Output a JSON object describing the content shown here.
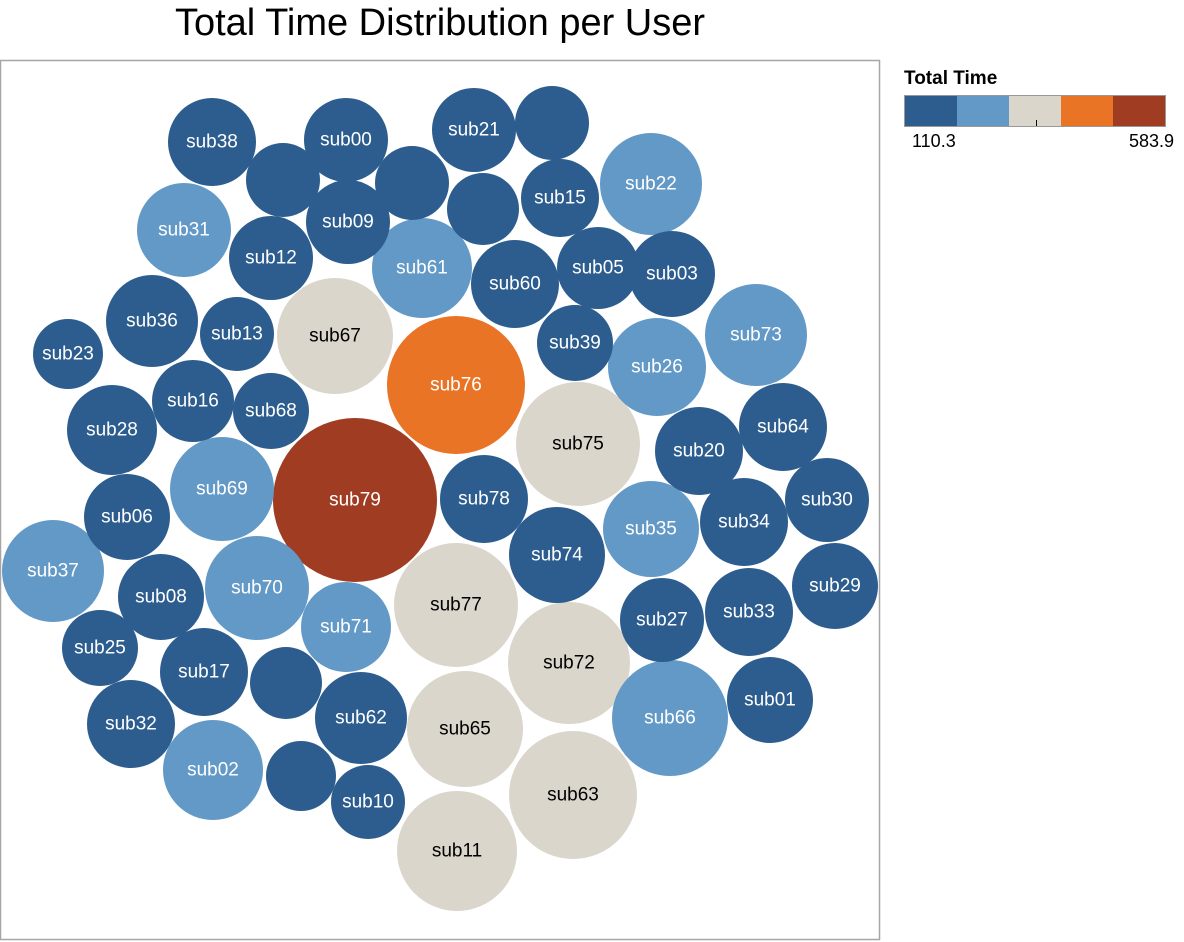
{
  "chart_data": {
    "type": "bubble",
    "title": "Total Time Distribution per User",
    "value_label": "Total Time",
    "color_scale": {
      "min": 110.3,
      "max": 583.9,
      "min_label": "110.3",
      "max_label": "583.9",
      "colors": [
        "#2c5d8e",
        "#6399c6",
        "#dad6cb",
        "#e97426",
        "#a03c22"
      ]
    },
    "bubbles": [
      {
        "label": "sub79",
        "value": 583.9
      },
      {
        "label": "sub76",
        "value": 468
      },
      {
        "label": "sub11",
        "value": 333
      },
      {
        "label": "sub63",
        "value": 327
      },
      {
        "label": "sub65",
        "value": 322
      },
      {
        "label": "sub72",
        "value": 321
      },
      {
        "label": "sub77",
        "value": 318
      },
      {
        "label": "sub75",
        "value": 308
      },
      {
        "label": "sub67",
        "value": 305
      },
      {
        "label": "sub66",
        "value": 283
      },
      {
        "label": "sub37",
        "value": 248
      },
      {
        "label": "sub70",
        "value": 248
      },
      {
        "label": "sub22",
        "value": 245
      },
      {
        "label": "sub69",
        "value": 238
      },
      {
        "label": "sub26",
        "value": 236
      },
      {
        "label": "sub73",
        "value": 236
      },
      {
        "label": "sub61",
        "value": 232
      },
      {
        "label": "sub35",
        "value": 231
      },
      {
        "label": "sub02",
        "value": 223
      },
      {
        "label": "sub31",
        "value": 213
      },
      {
        "label": "sub71",
        "value": 206
      },
      {
        "label": "sub74",
        "value": 202
      },
      {
        "label": "sub36",
        "value": 197
      },
      {
        "label": "sub60",
        "value": 196
      },
      {
        "label": "sub62",
        "value": 195
      },
      {
        "label": "sub34",
        "value": 195
      },
      {
        "label": "sub78",
        "value": 193
      },
      {
        "label": "sub33",
        "value": 192
      },
      {
        "label": "sub03",
        "value": 190
      },
      {
        "label": "sub17",
        "value": 190
      },
      {
        "label": "sub38",
        "value": 188
      },
      {
        "label": "sub20",
        "value": 187
      },
      {
        "label": "sub28",
        "value": 186
      },
      {
        "label": "sub29",
        "value": 186
      },
      {
        "label": "sub06",
        "value": 185
      },
      {
        "label": "sub08",
        "value": 184
      },
      {
        "label": "sub00",
        "value": 184
      },
      {
        "label": "sub32",
        "value": 183
      },
      {
        "label": "sub64",
        "value": 181
      },
      {
        "label": "sub27",
        "value": 178
      },
      {
        "label": "sub01",
        "value": 175
      },
      {
        "label": "sub30",
        "value": 175
      },
      {
        "label": "sub12",
        "value": 175
      },
      {
        "label": "sub16",
        "value": 172
      },
      {
        "label": "sub09",
        "value": 172
      },
      {
        "label": "sub23",
        "value": 168
      },
      {
        "label": "sub21",
        "value": 167
      },
      {
        "label": "sub15",
        "value": 165
      },
      {
        "label": "sub05",
        "value": 163
      },
      {
        "label": "sub13",
        "value": 163
      },
      {
        "label": "sub39",
        "value": 160
      },
      {
        "label": "sub68",
        "value": 160
      },
      {
        "label": "sub25",
        "value": 160
      },
      {
        "label": "sub10",
        "value": 156
      },
      {
        "label": "",
        "value": 152
      },
      {
        "label": "",
        "value": 150
      },
      {
        "label": "",
        "value": 152
      },
      {
        "label": "",
        "value": 150
      },
      {
        "label": "",
        "value": 148
      },
      {
        "label": "",
        "value": 149
      }
    ]
  }
}
